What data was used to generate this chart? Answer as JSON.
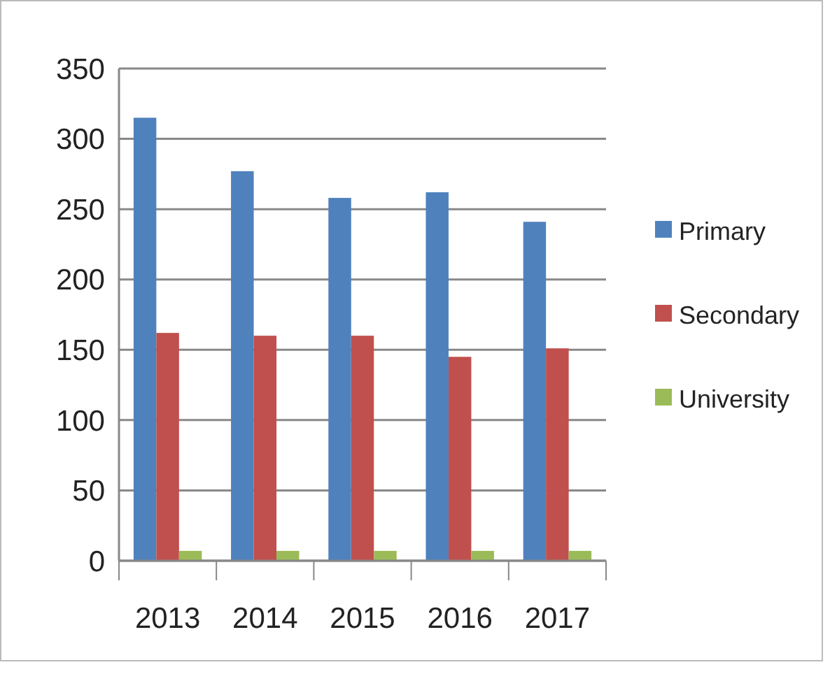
{
  "chart_data": {
    "type": "bar",
    "categories": [
      "2013",
      "2014",
      "2015",
      "2016",
      "2017"
    ],
    "series": [
      {
        "name": "Primary",
        "color": "#4f81bd",
        "values": [
          315,
          277,
          258,
          262,
          241
        ]
      },
      {
        "name": "Secondary",
        "color": "#c0504d",
        "values": [
          162,
          160,
          160,
          145,
          151
        ]
      },
      {
        "name": "University",
        "color": "#9bbb59",
        "values": [
          7,
          7,
          7,
          7,
          7
        ]
      }
    ],
    "ylim": [
      0,
      350
    ],
    "yticks": [
      0,
      50,
      100,
      150,
      200,
      250,
      300,
      350
    ],
    "grid": "y",
    "legend": "right"
  }
}
